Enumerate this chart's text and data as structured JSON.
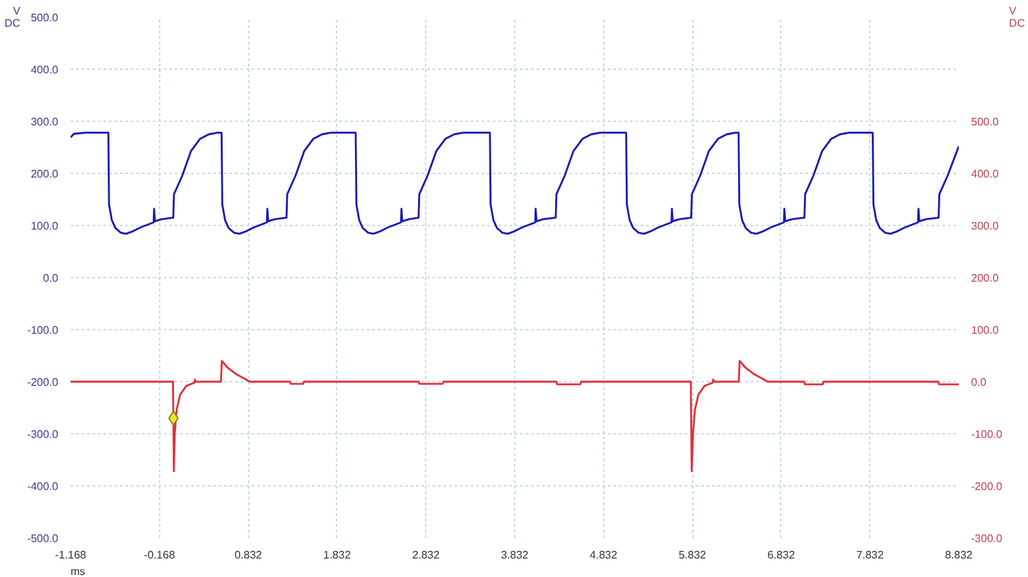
{
  "chart_data": {
    "type": "line",
    "xlabel": "ms",
    "ylabel": "V DC",
    "y2label": "V DC",
    "xlim": [
      -1.168,
      8.832
    ],
    "xticks": [
      -1.168,
      -0.168,
      0.832,
      1.832,
      2.832,
      3.832,
      4.832,
      5.832,
      6.832,
      7.832,
      8.832
    ],
    "ylim": [
      -500,
      500
    ],
    "yticks": [
      {
        "value": -500,
        "label": "-500.0"
      },
      {
        "value": -400,
        "label": "-400.0"
      },
      {
        "value": -300,
        "label": "-300.0"
      },
      {
        "value": -200,
        "label": "-200.0"
      },
      {
        "value": -100,
        "label": "-100.0"
      },
      {
        "value": 0,
        "label": "0.0"
      },
      {
        "value": 100,
        "label": "100.0"
      },
      {
        "value": 200,
        "label": "200.0"
      },
      {
        "value": 300,
        "label": "300.0"
      },
      {
        "value": 400,
        "label": "400.0"
      },
      {
        "value": 500,
        "label": "500.0"
      }
    ],
    "y2lim": [
      -300,
      700
    ],
    "y2ticks": [
      {
        "value": -300,
        "label": "-300.0"
      },
      {
        "value": -200,
        "label": "-200.0"
      },
      {
        "value": -100,
        "label": "-100.0"
      },
      {
        "value": 0,
        "label": "0.0"
      },
      {
        "value": 100,
        "label": "100.0"
      },
      {
        "value": 200,
        "label": "200.0"
      },
      {
        "value": 300,
        "label": "300.0"
      },
      {
        "value": 400,
        "label": "400.0"
      },
      {
        "value": 500,
        "label": "500.0"
      }
    ],
    "grid": true,
    "series": [
      {
        "color": "#1a1ab4",
        "x": [
          -1.168,
          -1.13,
          -1.0,
          -0.743,
          -0.735,
          -0.703,
          -0.663,
          -0.603,
          -0.543,
          -0.463,
          -0.383,
          -0.293,
          -0.233,
          -0.228,
          -0.218,
          -0.143,
          -0.012,
          -0.004,
          0.088,
          0.188,
          0.288,
          0.388,
          0.488,
          0.532,
          0.54,
          0.572,
          0.612,
          0.672,
          0.732,
          0.812,
          0.892,
          0.982,
          1.042,
          1.047,
          1.057,
          1.132,
          1.263,
          1.271,
          1.363,
          1.463,
          1.563,
          1.663,
          1.763,
          2.042,
          2.05,
          2.082,
          2.122,
          2.182,
          2.242,
          2.322,
          2.402,
          2.492,
          2.552,
          2.557,
          2.567,
          2.642,
          2.75,
          2.758,
          2.85,
          2.95,
          3.05,
          3.15,
          3.25,
          3.553,
          3.561,
          3.593,
          3.633,
          3.693,
          3.753,
          3.833,
          3.913,
          4.003,
          4.063,
          4.068,
          4.078,
          4.153,
          4.294,
          4.302,
          4.394,
          4.494,
          4.594,
          4.694,
          4.794,
          5.087,
          5.095,
          5.127,
          5.167,
          5.227,
          5.287,
          5.367,
          5.447,
          5.537,
          5.597,
          5.602,
          5.612,
          5.687,
          5.819,
          5.827,
          5.919,
          6.019,
          6.119,
          6.219,
          6.319,
          6.353,
          6.361,
          6.393,
          6.433,
          6.493,
          6.553,
          6.633,
          6.713,
          6.803,
          6.863,
          6.868,
          6.878,
          6.953,
          7.094,
          7.102,
          7.194,
          7.294,
          7.394,
          7.494,
          7.594,
          7.863,
          7.871,
          7.903,
          7.943,
          8.003,
          8.063,
          8.143,
          8.223,
          8.313,
          8.373,
          8.378,
          8.388,
          8.463,
          8.605,
          8.613,
          8.705,
          8.832
        ],
        "values": [
          269,
          276,
          278,
          278,
          140,
          110,
          95,
          86,
          84,
          89,
          96,
          102,
          106,
          132,
          108,
          112,
          115,
          160,
          195,
          243,
          266,
          275,
          278,
          278,
          140,
          110,
          95,
          86,
          84,
          89,
          96,
          102,
          106,
          132,
          108,
          112,
          115,
          160,
          195,
          243,
          266,
          275,
          278,
          278,
          140,
          110,
          95,
          86,
          84,
          89,
          96,
          102,
          106,
          132,
          108,
          112,
          115,
          160,
          195,
          243,
          266,
          275,
          278,
          278,
          140,
          110,
          95,
          86,
          84,
          89,
          96,
          102,
          106,
          132,
          108,
          112,
          115,
          160,
          195,
          243,
          266,
          275,
          278,
          278,
          140,
          110,
          95,
          86,
          84,
          89,
          96,
          102,
          106,
          132,
          108,
          112,
          115,
          160,
          195,
          243,
          266,
          275,
          278,
          278,
          140,
          110,
          95,
          86,
          84,
          89,
          96,
          102,
          106,
          132,
          108,
          112,
          115,
          160,
          195,
          243,
          266,
          275,
          278,
          278,
          140,
          110,
          95,
          86,
          84,
          89,
          96,
          102,
          106,
          132,
          108,
          112,
          115,
          160,
          195,
          252
        ]
      },
      {
        "color": "#e0303c",
        "axis": "y2",
        "x": [
          -1.168,
          -0.015,
          -0.005,
          0.005,
          0.025,
          0.065,
          0.135,
          0.225,
          0.232,
          0.24,
          0.525,
          0.535,
          0.6,
          0.7,
          0.79,
          0.85,
          1.3,
          1.31,
          1.45,
          1.46,
          2.75,
          2.76,
          3.02,
          3.03,
          4.3,
          4.31,
          4.57,
          4.58,
          5.815,
          5.825,
          5.84,
          5.86,
          5.9,
          5.97,
          6.06,
          6.067,
          6.075,
          6.355,
          6.365,
          6.43,
          6.53,
          6.62,
          6.68,
          7.09,
          7.1,
          7.3,
          7.31,
          8.6,
          8.61,
          8.832
        ],
        "values": [
          0,
          0,
          -172,
          -100,
          -55,
          -25,
          -8,
          -2,
          4,
          0,
          0,
          40,
          27,
          14,
          6,
          0,
          0,
          -4,
          -4,
          0,
          0,
          -4,
          -4,
          0,
          0,
          -5,
          -5,
          0,
          0,
          -172,
          -100,
          -55,
          -25,
          -8,
          -2,
          4,
          0,
          0,
          40,
          27,
          14,
          6,
          0,
          0,
          -5,
          -5,
          0,
          0,
          -5,
          -5
        ]
      },
      {
        "type": "scatter",
        "color": "#f2e630",
        "marker": "diamond",
        "axis": "y2",
        "x": [
          -0.01
        ],
        "values": [
          -70
        ]
      }
    ]
  }
}
